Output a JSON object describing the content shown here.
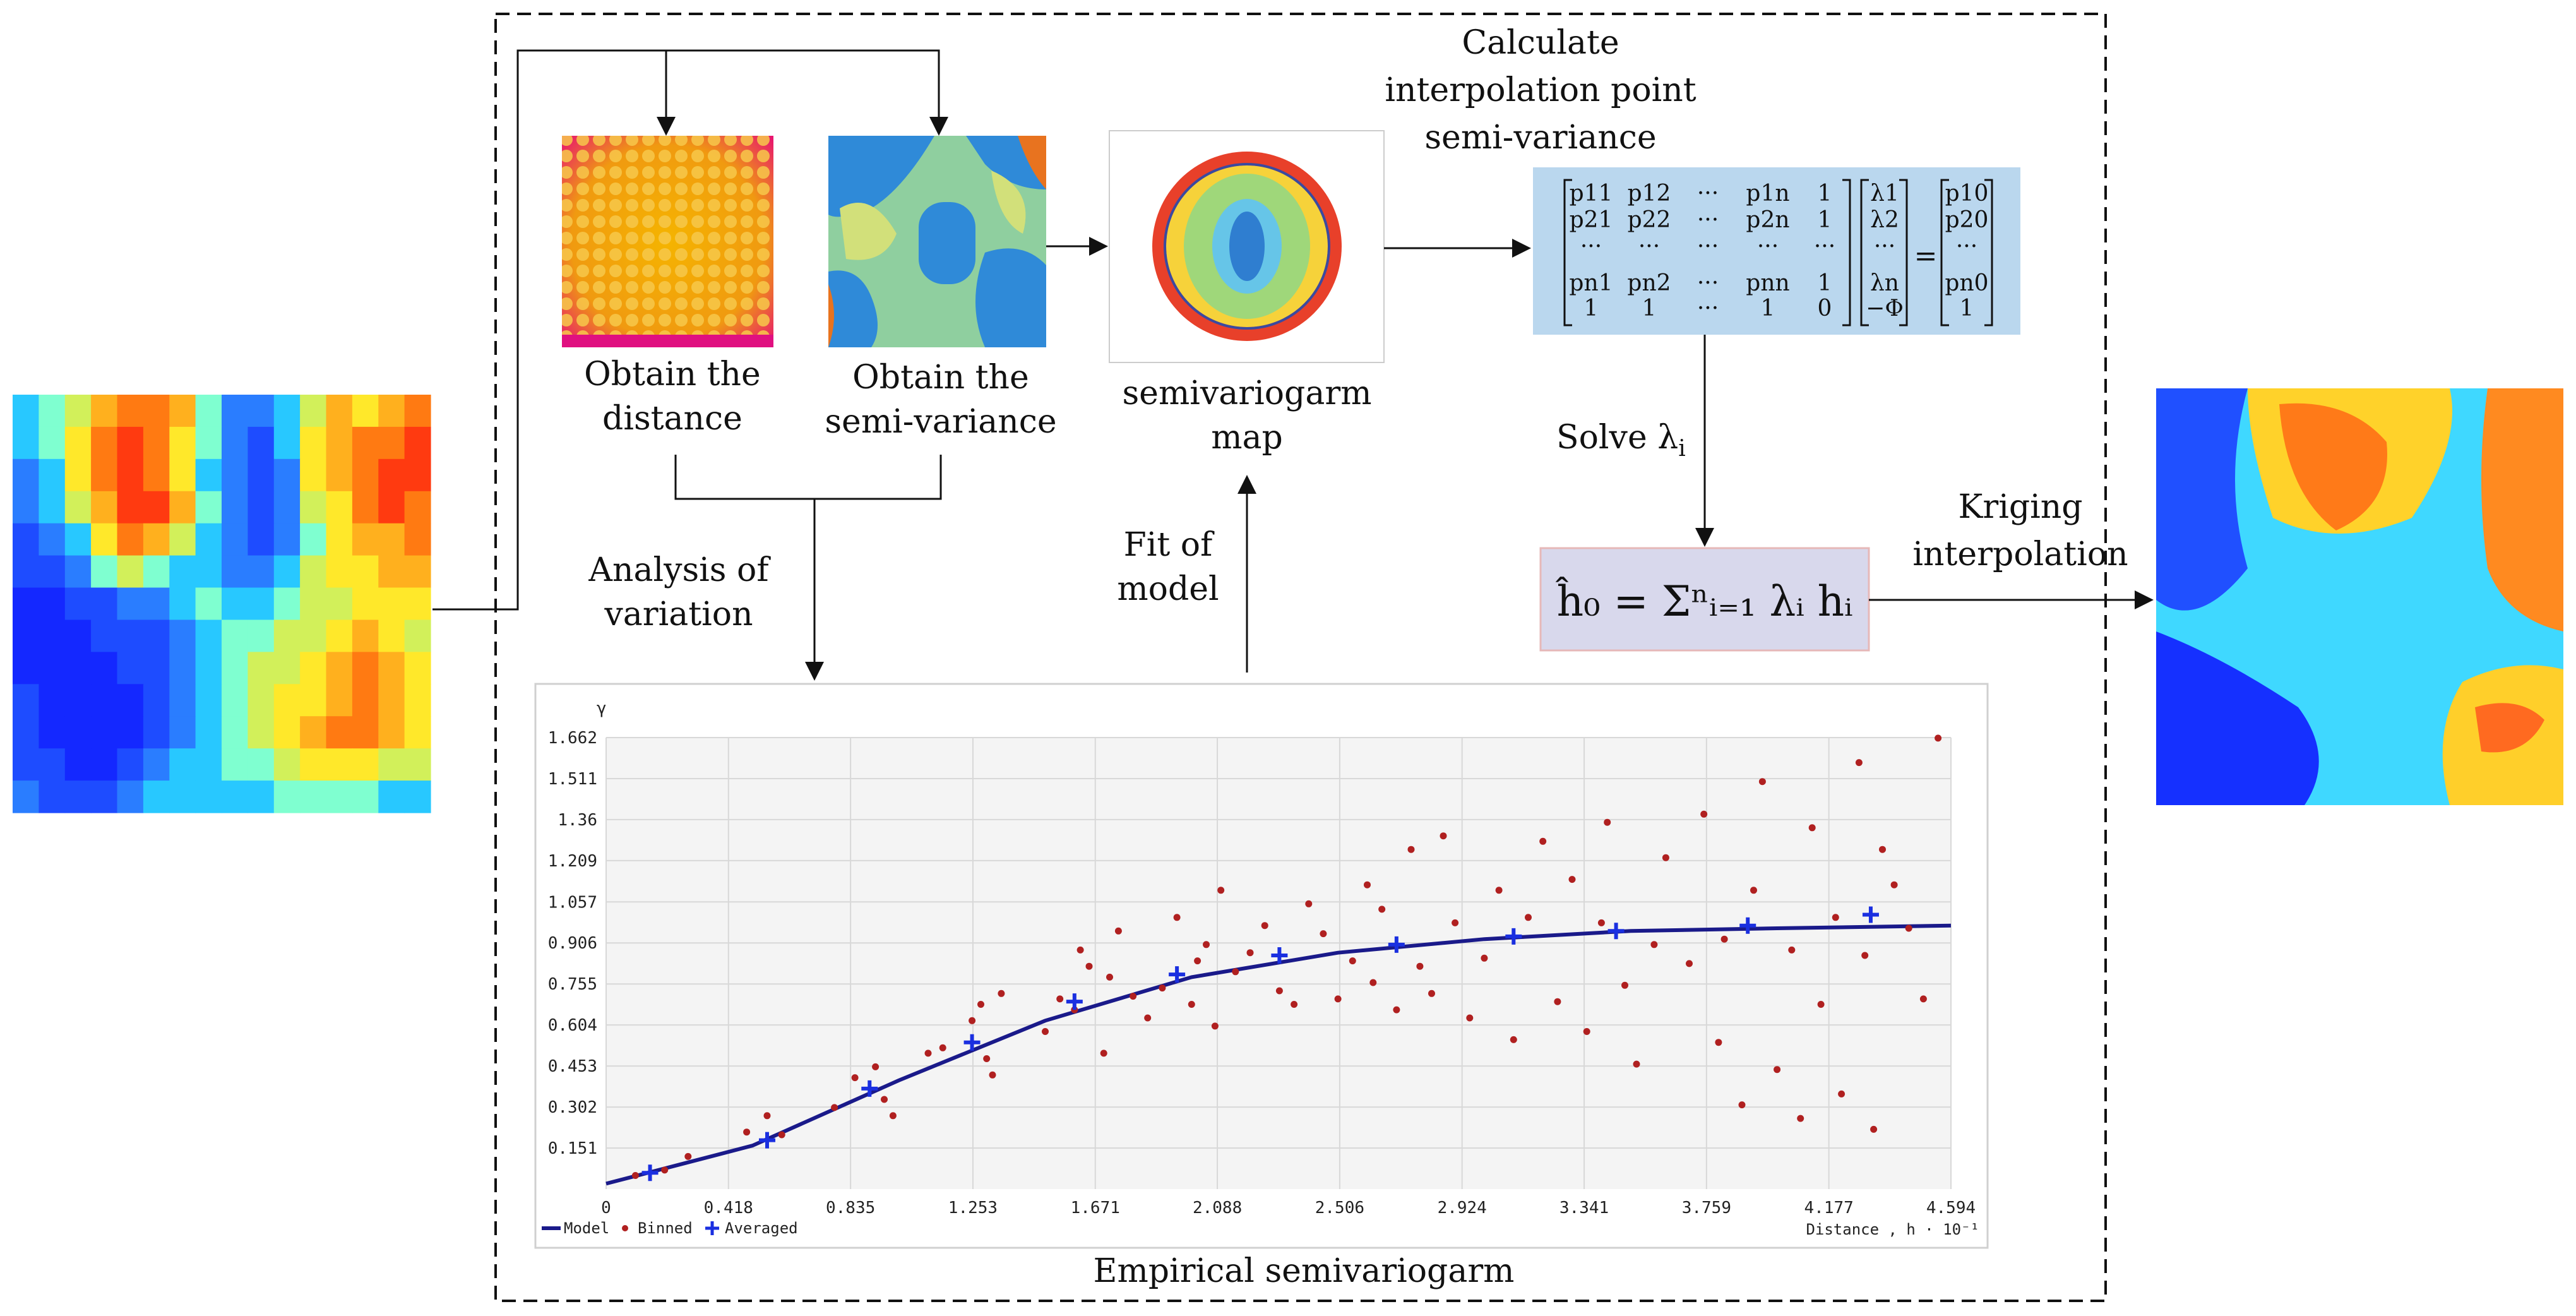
{
  "labels": {
    "obtain_distance_line1": "Obtain the",
    "obtain_distance_line2": "distance",
    "obtain_semivariance_line1": "Obtain the",
    "obtain_semivariance_line2": "semi-variance",
    "semivariogram_map_line1": "semivariogarm",
    "semivariogram_map_line2": "map",
    "calculate_line1": "Calculate",
    "calculate_line2": "interpolation point",
    "calculate_line3": "semi-variance",
    "solve": "Solve λ",
    "solve_sub": "i",
    "kriging_line1": "Kriging",
    "kriging_line2": "interpolation",
    "analysis_line1": "Analysis of",
    "analysis_line2": "variation",
    "fit_line1": "Fit of",
    "fit_line2": "model",
    "empirical": "Empirical semivariogarm",
    "formula": "ĥ₀ = Σⁿᵢ₌₁ λᵢ hᵢ"
  },
  "matrix": {
    "rows": [
      [
        "p11",
        "p12",
        "···",
        "p1n",
        "1"
      ],
      [
        "p21",
        "p22",
        "···",
        "p2n",
        "1"
      ],
      [
        "···",
        "···",
        "···",
        "···",
        "···"
      ],
      [
        "pn1",
        "pn2",
        "···",
        "pnn",
        "1"
      ],
      [
        "1",
        "1",
        "···",
        "1",
        "0"
      ]
    ],
    "lambda": [
      "λ1",
      "λ2",
      "···",
      "λn",
      "−Φ"
    ],
    "equals": "=",
    "rhs": [
      "p10",
      "p20",
      "···",
      "pn0",
      "1"
    ]
  },
  "chart_data": {
    "type": "scatter",
    "ylabel": "γ",
    "xlabel": "Distance , h · 10⁻¹",
    "x_ticks": [
      "0",
      "0.418",
      "0.835",
      "1.253",
      "1.671",
      "2.088",
      "2.506",
      "2.924",
      "3.341",
      "3.759",
      "4.177",
      "4.594"
    ],
    "y_ticks": [
      "0.151",
      "0.302",
      "0.453",
      "0.604",
      "0.755",
      "0.906",
      "1.057",
      "1.209",
      "1.36",
      "1.511",
      "1.662"
    ],
    "xlim": [
      0,
      4.594
    ],
    "ylim": [
      0,
      1.662
    ],
    "legend": [
      "Model",
      "Binned",
      "Averaged"
    ],
    "grid": true,
    "series": [
      {
        "name": "Averaged",
        "x": [
          0.15,
          0.55,
          0.9,
          1.25,
          1.6,
          1.95,
          2.3,
          2.7,
          3.1,
          3.45,
          3.9,
          4.32
        ],
        "y": [
          0.06,
          0.18,
          0.37,
          0.54,
          0.69,
          0.79,
          0.86,
          0.9,
          0.93,
          0.95,
          0.97,
          1.01
        ]
      },
      {
        "name": "Binned",
        "x": [
          0.1,
          0.2,
          0.28,
          0.48,
          0.55,
          0.6,
          0.78,
          0.85,
          0.92,
          0.95,
          0.98,
          1.1,
          1.15,
          1.25,
          1.28,
          1.3,
          1.32,
          1.35,
          1.5,
          1.55,
          1.6,
          1.62,
          1.65,
          1.7,
          1.72,
          1.75,
          1.8,
          1.85,
          1.9,
          1.95,
          2.0,
          2.02,
          2.05,
          2.08,
          2.1,
          2.15,
          2.2,
          2.25,
          2.3,
          2.35,
          2.4,
          2.45,
          2.5,
          2.55,
          2.6,
          2.62,
          2.65,
          2.7,
          2.75,
          2.78,
          2.82,
          2.86,
          2.9,
          2.95,
          3.0,
          3.05,
          3.1,
          3.15,
          3.2,
          3.25,
          3.3,
          3.35,
          3.4,
          3.42,
          3.48,
          3.52,
          3.58,
          3.62,
          3.7,
          3.75,
          3.8,
          3.82,
          3.88,
          3.92,
          3.95,
          4.0,
          4.05,
          4.08,
          4.12,
          4.15,
          4.2,
          4.22,
          4.28,
          4.3,
          4.33,
          4.36,
          4.4,
          4.45,
          4.5,
          4.55
        ],
        "y": [
          0.05,
          0.07,
          0.12,
          0.21,
          0.27,
          0.2,
          0.3,
          0.41,
          0.45,
          0.33,
          0.27,
          0.5,
          0.52,
          0.62,
          0.68,
          0.48,
          0.42,
          0.72,
          0.58,
          0.7,
          0.66,
          0.88,
          0.82,
          0.5,
          0.78,
          0.95,
          0.71,
          0.63,
          0.74,
          1.0,
          0.68,
          0.84,
          0.9,
          0.6,
          1.1,
          0.8,
          0.87,
          0.97,
          0.73,
          0.68,
          1.05,
          0.94,
          0.7,
          0.84,
          1.12,
          0.76,
          1.03,
          0.66,
          1.25,
          0.82,
          0.72,
          1.3,
          0.98,
          0.63,
          0.85,
          1.1,
          0.55,
          1.0,
          1.28,
          0.69,
          1.14,
          0.58,
          0.98,
          1.35,
          0.75,
          0.46,
          0.9,
          1.22,
          0.83,
          1.38,
          0.54,
          0.92,
          0.31,
          1.1,
          1.5,
          0.44,
          0.88,
          0.26,
          1.33,
          0.68,
          1.0,
          0.35,
          1.57,
          0.86,
          0.22,
          1.25,
          1.12,
          0.96,
          0.7,
          1.66
        ]
      },
      {
        "name": "Model",
        "x": [
          0,
          0.5,
          1.0,
          1.5,
          2.0,
          2.5,
          3.0,
          3.5,
          4.0,
          4.594
        ],
        "y": [
          0.02,
          0.16,
          0.4,
          0.62,
          0.78,
          0.87,
          0.92,
          0.95,
          0.96,
          0.97
        ]
      }
    ]
  }
}
